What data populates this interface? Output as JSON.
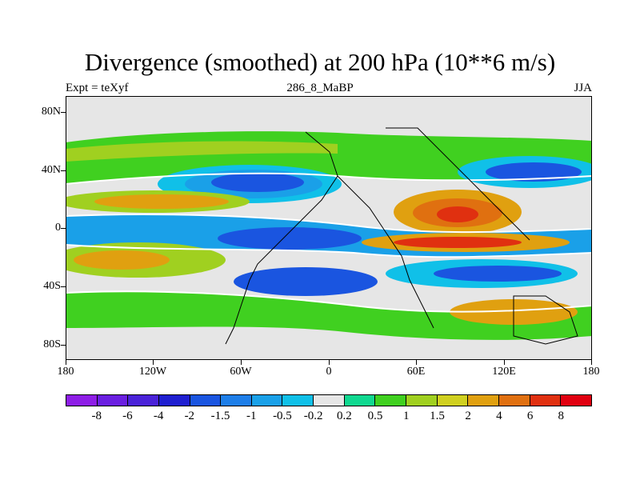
{
  "header": {
    "title": "Divergence (smoothed) at 200 hPa (10**6 m/s)",
    "left": "Expt = teXyf",
    "center": "286_8_MaBP",
    "right": "JJA"
  },
  "axes": {
    "lat_labels": [
      "80N",
      "40N",
      "0",
      "40S",
      "80S"
    ],
    "lon_labels": [
      "180",
      "120W",
      "60W",
      "0",
      "60E",
      "120E",
      "180"
    ]
  },
  "colorbar": {
    "colors": [
      "#8e1ee6",
      "#6a1fe0",
      "#4a22d8",
      "#1f1fd0",
      "#1a55e0",
      "#1e7ee8",
      "#1aa0e8",
      "#10c0e8",
      "#e6e6e6",
      "#10d890",
      "#40d020",
      "#a0d020",
      "#d0d020",
      "#e0a010",
      "#e07010",
      "#e03010",
      "#e00010"
    ],
    "labels": [
      "-8",
      "-6",
      "-4",
      "-2",
      "-1.5",
      "-1",
      "-0.5",
      "-0.2",
      "0.2",
      "0.5",
      "1",
      "1.5",
      "2",
      "4",
      "6",
      "8"
    ]
  },
  "map": {
    "background_color": "#e6e6e6",
    "contour_color": "#ffffff",
    "coastline_color": "#000000"
  }
}
